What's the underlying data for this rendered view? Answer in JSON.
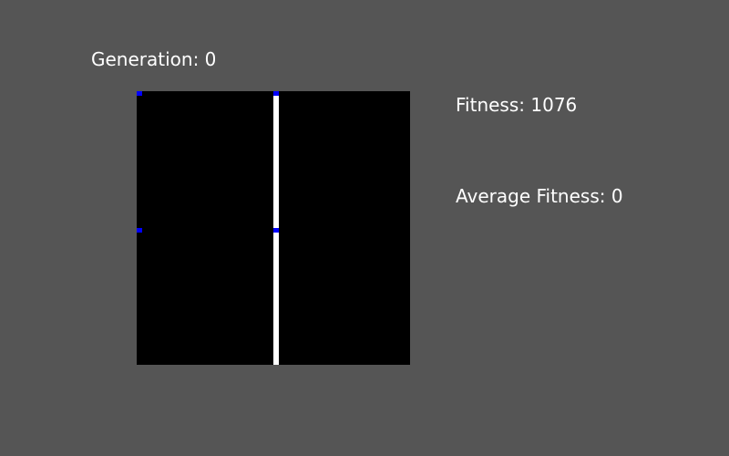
{
  "window": {
    "background": "#555555"
  },
  "hud": {
    "generation_label": "Generation: 0",
    "fitness_label": "Fitness: 1076",
    "average_fitness_label": "Average Fitness: 0",
    "text_color": "#ffffff"
  },
  "board": {
    "background": "#000000",
    "wall_color": "#ffffff",
    "marker_color": "#0000ff",
    "marker_count": 4
  }
}
